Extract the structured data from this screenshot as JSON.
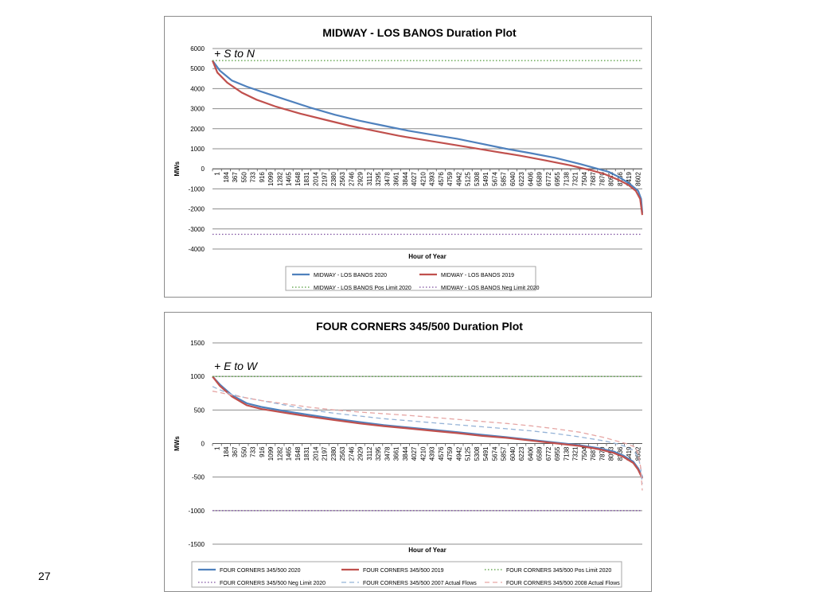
{
  "slide": {
    "page_number": "27"
  },
  "chart_data": [
    {
      "type": "line",
      "title": "MIDWAY - LOS BANOS Duration Plot",
      "xlabel": "Hour of Year",
      "ylabel": "MWs",
      "annotation": "+ S to N",
      "ylim": [
        -4000,
        6000
      ],
      "yticks": [
        6000,
        5000,
        4000,
        3000,
        2000,
        1000,
        0,
        -1000,
        -2000,
        -3000,
        -4000
      ],
      "xticks": [
        "1",
        "184",
        "367",
        "550",
        "733",
        "916",
        "1099",
        "1282",
        "1465",
        "1648",
        "1831",
        "2014",
        "2197",
        "2380",
        "2563",
        "2746",
        "2929",
        "3112",
        "3295",
        "3478",
        "3661",
        "3844",
        "4027",
        "4210",
        "4393",
        "4576",
        "4759",
        "4942",
        "5125",
        "5308",
        "5491",
        "5674",
        "5857",
        "6040",
        "6223",
        "6406",
        "6589",
        "6772",
        "6955",
        "7138",
        "7321",
        "7504",
        "7687",
        "7870",
        "8053",
        "8236",
        "8419",
        "8602"
      ],
      "xlim": [
        1,
        8784
      ],
      "grid": true,
      "legend_position": "bottom",
      "series": [
        {
          "name": "MIDWAY - LOS BANOS 2020",
          "color": "#4f81bd",
          "style": "solid",
          "x": [
            1,
            150,
            400,
            700,
            1000,
            1500,
            2000,
            2500,
            3000,
            3500,
            4000,
            4500,
            5000,
            5500,
            6000,
            6500,
            7000,
            7500,
            7800,
            8100,
            8300,
            8500,
            8600,
            8700,
            8760,
            8784
          ],
          "y": [
            5400,
            4900,
            4400,
            4100,
            3850,
            3450,
            3050,
            2700,
            2400,
            2150,
            1900,
            1700,
            1500,
            1250,
            1000,
            780,
            550,
            250,
            50,
            -150,
            -400,
            -700,
            -900,
            -1100,
            -1500,
            -2200
          ]
        },
        {
          "name": "MIDWAY - LOS BANOS 2019",
          "color": "#c0504d",
          "style": "solid",
          "x": [
            1,
            100,
            300,
            600,
            900,
            1300,
            1800,
            2300,
            2800,
            3300,
            3800,
            4300,
            4800,
            5300,
            5800,
            6300,
            6800,
            7300,
            7700,
            8000,
            8300,
            8500,
            8650,
            8740,
            8784
          ],
          "y": [
            5400,
            4800,
            4300,
            3800,
            3450,
            3100,
            2750,
            2450,
            2150,
            1900,
            1650,
            1450,
            1250,
            1050,
            850,
            650,
            420,
            180,
            -50,
            -250,
            -550,
            -800,
            -1100,
            -1500,
            -2300
          ]
        },
        {
          "name": "MIDWAY - LOS BANOS Pos Limit 2020",
          "color": "#4f9a38",
          "style": "dotted",
          "x": [
            1,
            8784
          ],
          "y": [
            5400,
            5400
          ]
        },
        {
          "name": "MIDWAY - LOS BANOS Neg Limit 2020",
          "color": "#7b4d9e",
          "style": "dotted",
          "x": [
            1,
            8784
          ],
          "y": [
            -3265,
            -3265
          ]
        }
      ]
    },
    {
      "type": "line",
      "title": "FOUR CORNERS 345/500 Duration Plot",
      "xlabel": "Hour of Year",
      "ylabel": "MWs",
      "annotation": "+ E to W",
      "ylim": [
        -1500,
        1500
      ],
      "yticks": [
        1500,
        1000,
        500,
        0,
        -500,
        -1000,
        -1500
      ],
      "xticks": [
        "1",
        "184",
        "367",
        "550",
        "733",
        "916",
        "1099",
        "1282",
        "1465",
        "1648",
        "1831",
        "2014",
        "2197",
        "2380",
        "2563",
        "2746",
        "2929",
        "3112",
        "3295",
        "3478",
        "3661",
        "3844",
        "4027",
        "4210",
        "4393",
        "4576",
        "4759",
        "4942",
        "5125",
        "5308",
        "5491",
        "5674",
        "5857",
        "6040",
        "6223",
        "6406",
        "6589",
        "6772",
        "6955",
        "7138",
        "7321",
        "7504",
        "7687",
        "7870",
        "8053",
        "8236",
        "8419",
        "8602"
      ],
      "xlim": [
        1,
        8784
      ],
      "grid": true,
      "legend_position": "bottom",
      "series": [
        {
          "name": "FOUR CORNERS 345/500  2020",
          "color": "#4f81bd",
          "style": "solid",
          "x": [
            1,
            150,
            400,
            700,
            1000,
            1500,
            2000,
            2500,
            3000,
            3500,
            4000,
            4500,
            5000,
            5500,
            6000,
            6500,
            7000,
            7500,
            7900,
            8200,
            8400,
            8600,
            8700,
            8784
          ],
          "y": [
            1000,
            880,
            720,
            600,
            545,
            480,
            425,
            370,
            320,
            275,
            240,
            205,
            170,
            130,
            95,
            55,
            15,
            -25,
            -70,
            -120,
            -180,
            -270,
            -370,
            -500
          ]
        },
        {
          "name": "FOUR CORNERS 345/500  2019",
          "color": "#c0504d",
          "style": "solid",
          "x": [
            1,
            150,
            400,
            700,
            1000,
            1500,
            2000,
            2500,
            3000,
            3500,
            4000,
            4500,
            5000,
            5500,
            6000,
            6500,
            7000,
            7500,
            7900,
            8200,
            8400,
            8600,
            8700,
            8784
          ],
          "y": [
            1000,
            860,
            700,
            570,
            515,
            455,
            400,
            350,
            300,
            260,
            225,
            190,
            155,
            115,
            85,
            45,
            5,
            -35,
            -85,
            -140,
            -200,
            -290,
            -390,
            -520
          ]
        },
        {
          "name": "FOUR CORNERS 345/500  Pos Limit 2020",
          "color": "#4f9a38",
          "style": "dotted",
          "x": [
            1,
            8784
          ],
          "y": [
            1000,
            1000
          ]
        },
        {
          "name": "FOUR CORNERS 345/500  Neg Limit 2020",
          "color": "#7b4d9e",
          "style": "dotted",
          "x": [
            1,
            8784
          ],
          "y": [
            -1000,
            -1000
          ]
        },
        {
          "name": "FOUR CORNERS 345/500  2007 Actual Flows",
          "color": "#95b3d7",
          "style": "dashed",
          "x": [
            1,
            150,
            400,
            700,
            1000,
            1500,
            2000,
            2500,
            3000,
            3500,
            4000,
            4500,
            5000,
            5500,
            6000,
            6500,
            7000,
            7500,
            8000,
            8300,
            8500,
            8600,
            8650,
            8700,
            8750,
            8784
          ],
          "y": [
            850,
            800,
            730,
            680,
            640,
            570,
            500,
            450,
            410,
            370,
            340,
            310,
            280,
            250,
            220,
            190,
            150,
            100,
            40,
            -10,
            -60,
            -100,
            -150,
            -200,
            -350,
            -600
          ]
        },
        {
          "name": "FOUR CORNERS 345/500  2008 Actual Flows",
          "color": "#e6a6a4",
          "style": "dashed",
          "x": [
            1,
            150,
            400,
            700,
            1000,
            1500,
            2000,
            2500,
            3000,
            3500,
            4000,
            4500,
            5000,
            5500,
            6000,
            6500,
            7000,
            7500,
            8000,
            8300,
            8500,
            8650,
            8700,
            8750,
            8784
          ],
          "y": [
            780,
            760,
            720,
            680,
            640,
            590,
            540,
            500,
            470,
            445,
            420,
            390,
            360,
            330,
            300,
            265,
            220,
            170,
            90,
            30,
            -10,
            -60,
            -150,
            -350,
            -700
          ]
        }
      ]
    }
  ]
}
